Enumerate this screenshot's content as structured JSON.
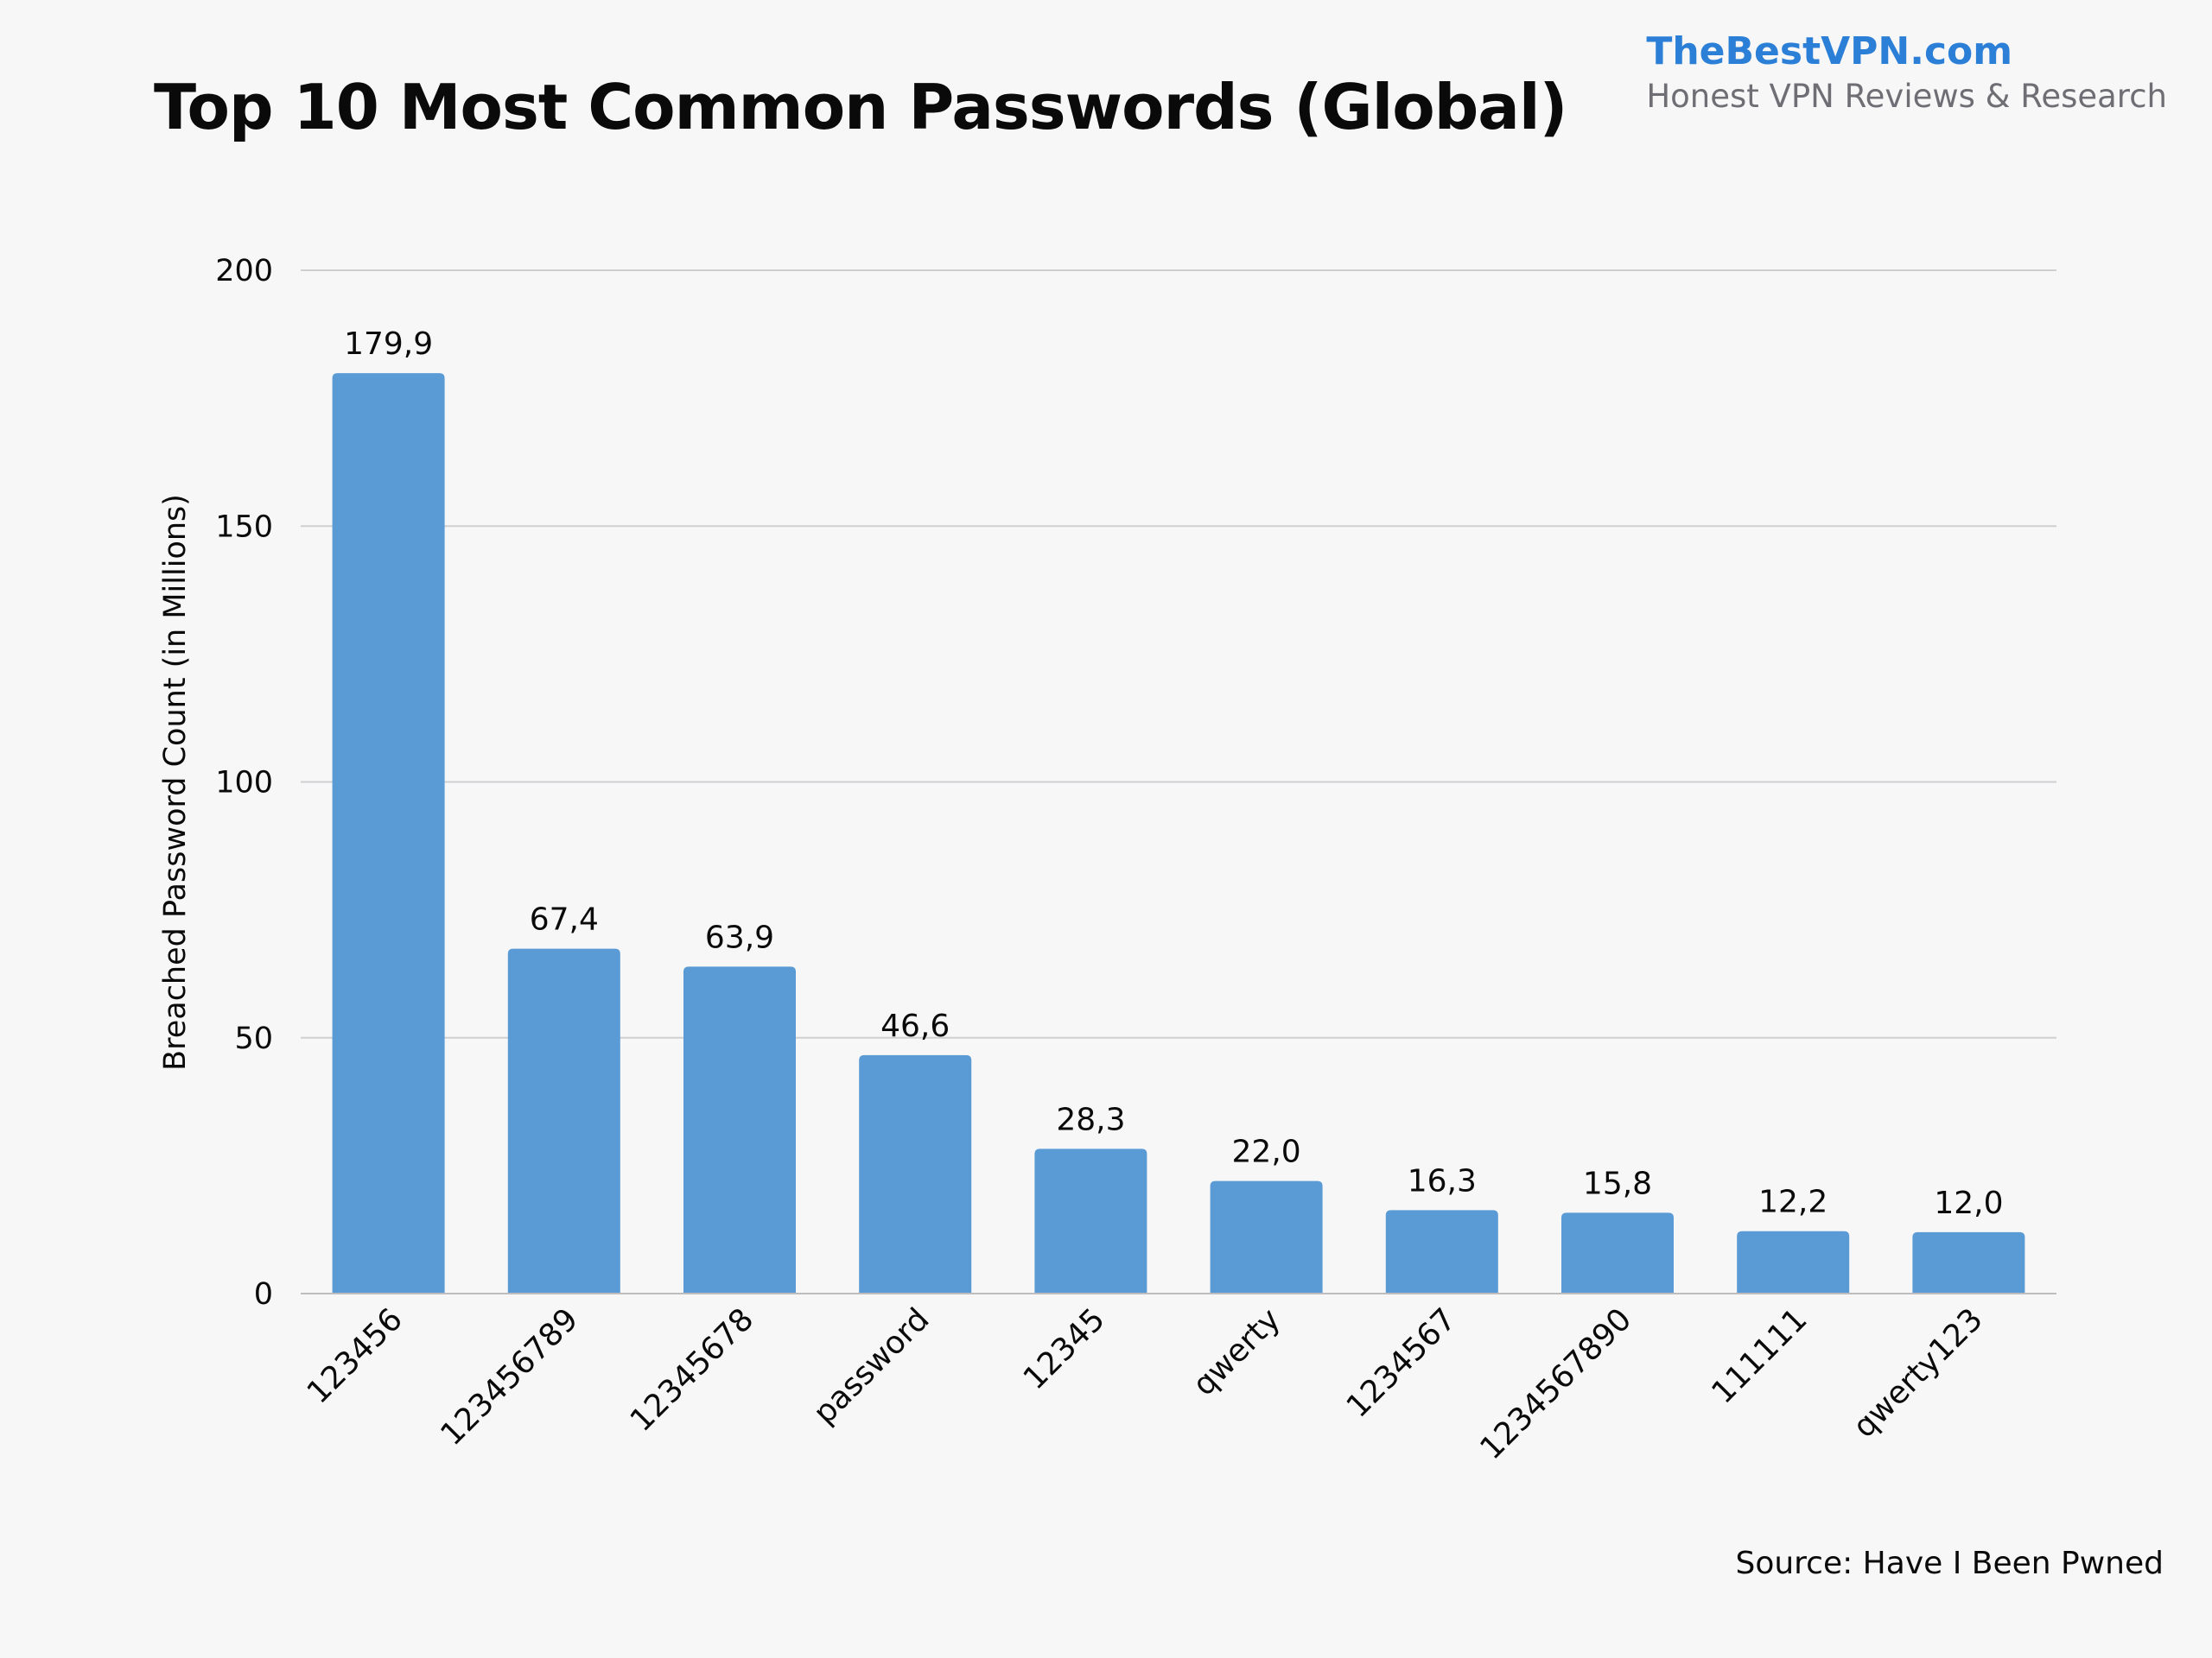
{
  "brand": {
    "name": "TheBestVPN.com",
    "tagline": "Honest VPN Reviews & Research"
  },
  "source": "Source: Have I Been Pwned",
  "colors": {
    "bar": "#5b9bd5",
    "brand": "#2b7fd6",
    "background": "#f8f7f8"
  },
  "chart_data": {
    "type": "bar",
    "title": "Top 10 Most Common Passwords (Global)",
    "xlabel": "",
    "ylabel": "Breached Password Count (in Millions)",
    "categories": [
      "123456",
      "123456789",
      "12345678",
      "password",
      "12345",
      "qwerty",
      "1234567",
      "1234567890",
      "111111",
      "qwerty123"
    ],
    "values": [
      179.9,
      67.4,
      63.9,
      46.6,
      28.3,
      22.0,
      16.3,
      15.8,
      12.2,
      12.0
    ],
    "value_labels": [
      "179,9",
      "67,4",
      "63,9",
      "46,6",
      "28,3",
      "22,0",
      "16,3",
      "15,8",
      "12,2",
      "12,0"
    ],
    "ylim": [
      0,
      200
    ],
    "yticks": [
      0,
      50,
      100,
      150,
      200
    ],
    "grid": true,
    "legend": "none"
  }
}
